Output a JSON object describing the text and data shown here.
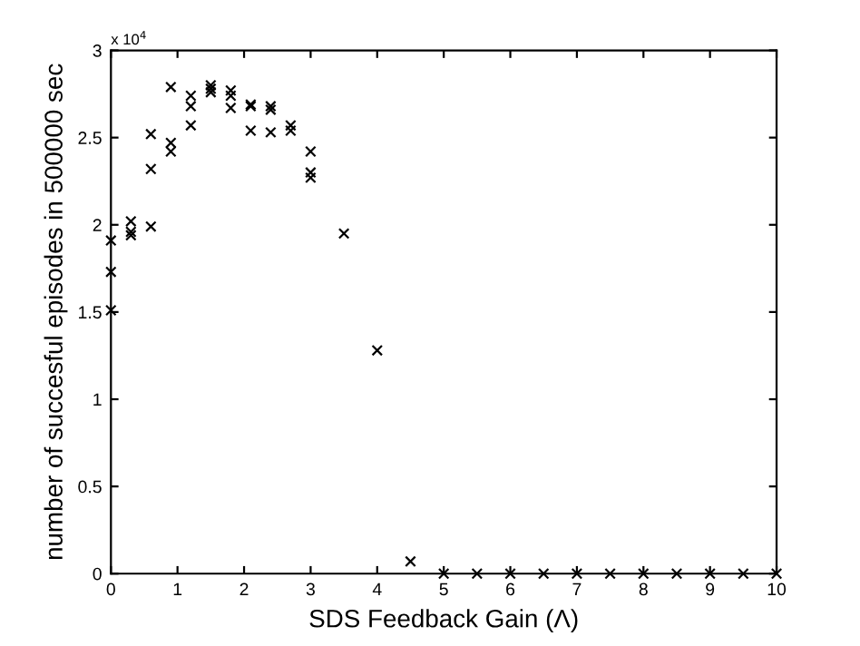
{
  "chart_data": {
    "type": "scatter",
    "xlabel": "SDS Feedback Gain (Λ)",
    "ylabel": "number of succesful episodes in 500000 sec",
    "annotations": [
      "x 10$^{4}$"
    ],
    "x": [
      0,
      0,
      0,
      0.3,
      0.3,
      0.3,
      0.6,
      0.6,
      0.6,
      0.9,
      0.9,
      0.9,
      1.2,
      1.2,
      1.2,
      1.5,
      1.5,
      1.5,
      1.8,
      1.8,
      1.8,
      2.1,
      2.1,
      2.1,
      2.4,
      2.4,
      2.4,
      2.7,
      2.7,
      3.0,
      3.0,
      3.0,
      3.5,
      4.0,
      4.5,
      5,
      5.5,
      6,
      6.5,
      7,
      7.5,
      8,
      8.5,
      9,
      9.5,
      10
    ],
    "series": [
      {
        "color": "#000000",
        "values": [
          1.91,
          1.73,
          1.51,
          2.02,
          1.96,
          1.94,
          2.52,
          2.32,
          1.99,
          2.79,
          2.47,
          2.42,
          2.74,
          2.68,
          2.57,
          2.8,
          2.78,
          2.76,
          2.77,
          2.74,
          2.67,
          2.69,
          2.68,
          2.54,
          2.68,
          2.66,
          2.53,
          2.57,
          2.54,
          2.42,
          2.3,
          2.27,
          1.95,
          1.28,
          0.07,
          0,
          0,
          0,
          0,
          0,
          0,
          0,
          0,
          0,
          0,
          0
        ]
      }
    ],
    "xlim": [
      0,
      10
    ],
    "ylim": [
      0,
      3
    ],
    "xticks": [
      0,
      1,
      2,
      3,
      4,
      5,
      6,
      7,
      8,
      9,
      10
    ],
    "yticks": [
      0,
      0.5,
      1,
      1.5,
      2,
      2.5,
      3
    ],
    "marker": "cross",
    "grid": false,
    "legend": false
  }
}
